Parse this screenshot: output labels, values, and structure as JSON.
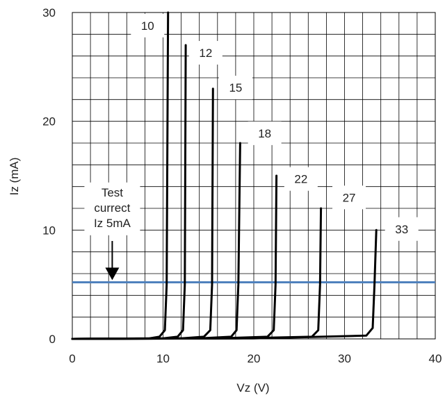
{
  "chart_data": {
    "type": "line",
    "xlabel": "Vz (V)",
    "ylabel": "Iz (mA)",
    "xlim": [
      0,
      40
    ],
    "ylim": [
      0,
      30
    ],
    "xticks": [
      0,
      10,
      20,
      30,
      40
    ],
    "yticks": [
      0,
      10,
      20,
      30
    ],
    "grid": true,
    "grid_minor_x": 2,
    "grid_minor_y": 2,
    "series": [
      {
        "name": "10",
        "points": [
          [
            0,
            0
          ],
          [
            8.5,
            0.05
          ],
          [
            9.6,
            0.2
          ],
          [
            10.2,
            0.8
          ],
          [
            10.4,
            5
          ],
          [
            10.55,
            30
          ]
        ],
        "label_pos": [
          8.3,
          28.8
        ]
      },
      {
        "name": "12",
        "points": [
          [
            0,
            0
          ],
          [
            10,
            0.05
          ],
          [
            11.6,
            0.2
          ],
          [
            12.2,
            0.8
          ],
          [
            12.4,
            5
          ],
          [
            12.5,
            27
          ]
        ],
        "label_pos": [
          14.7,
          26.3
        ]
      },
      {
        "name": "15",
        "points": [
          [
            0,
            0
          ],
          [
            12,
            0.05
          ],
          [
            14.5,
            0.2
          ],
          [
            15.2,
            0.8
          ],
          [
            15.4,
            5
          ],
          [
            15.5,
            23
          ]
        ],
        "label_pos": [
          18.0,
          23.1
        ]
      },
      {
        "name": "18",
        "points": [
          [
            0,
            0
          ],
          [
            14,
            0.05
          ],
          [
            17.5,
            0.2
          ],
          [
            18.1,
            0.8
          ],
          [
            18.3,
            5
          ],
          [
            18.5,
            18
          ]
        ],
        "label_pos": [
          21.2,
          18.9
        ]
      },
      {
        "name": "22",
        "points": [
          [
            0,
            0
          ],
          [
            16,
            0.05
          ],
          [
            21.5,
            0.2
          ],
          [
            22.2,
            0.8
          ],
          [
            22.4,
            5
          ],
          [
            22.5,
            15
          ]
        ],
        "label_pos": [
          25.2,
          14.7
        ]
      },
      {
        "name": "27",
        "points": [
          [
            0,
            0
          ],
          [
            18,
            0.05
          ],
          [
            26.4,
            0.2
          ],
          [
            27.1,
            0.8
          ],
          [
            27.3,
            5
          ],
          [
            27.4,
            12
          ]
        ],
        "label_pos": [
          30.5,
          13.0
        ]
      },
      {
        "name": "33",
        "points": [
          [
            0,
            0
          ],
          [
            20,
            0.05
          ],
          [
            32.4,
            0.3
          ],
          [
            33.1,
            1.0
          ],
          [
            33.3,
            5
          ],
          [
            33.5,
            10
          ]
        ],
        "label_pos": [
          36.3,
          10.1
        ]
      }
    ],
    "reference_line": {
      "y": 5.2,
      "color": "#4f81bd"
    },
    "annotation": {
      "lines": [
        "Test",
        "currect",
        "Iz 5mA"
      ],
      "text_pos": [
        4.4,
        13.1
      ],
      "arrow_from": [
        4.4,
        9.0
      ],
      "arrow_to": [
        4.4,
        5.4
      ]
    }
  },
  "colors": {
    "curve": "#000000",
    "reference": "#4f81bd",
    "grid": "#000000",
    "text": "#222222"
  }
}
